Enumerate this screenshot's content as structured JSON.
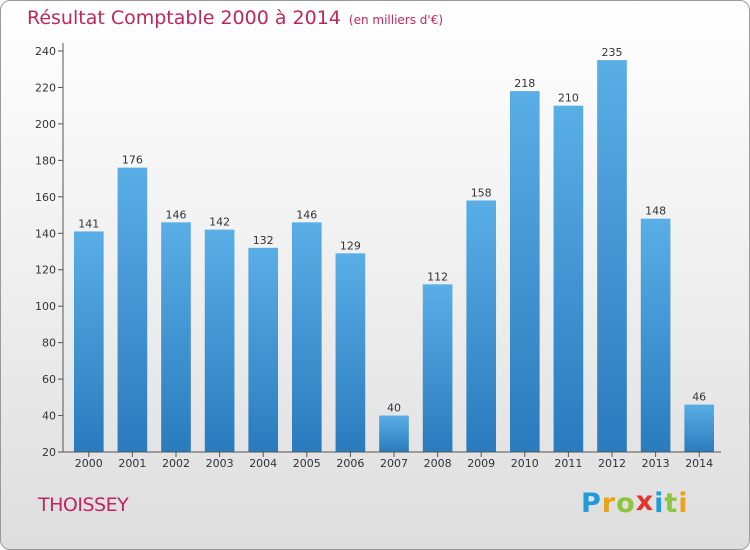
{
  "chart_data": {
    "type": "bar",
    "title": "Résultat Comptable 2000 à 2014",
    "subtitle": "(en milliers d'€)",
    "categories": [
      "2000",
      "2001",
      "2002",
      "2003",
      "2004",
      "2005",
      "2006",
      "2007",
      "2008",
      "2009",
      "2010",
      "2011",
      "2012",
      "2013",
      "2014"
    ],
    "values": [
      141,
      176,
      146,
      142,
      132,
      146,
      129,
      40,
      112,
      158,
      218,
      210,
      235,
      148,
      46
    ],
    "ylim": [
      20,
      240
    ],
    "yticks": [
      20,
      40,
      60,
      80,
      100,
      120,
      140,
      160,
      180,
      200,
      220,
      240
    ],
    "xlabel": "",
    "ylabel": "",
    "grid": false,
    "bar_color_top": "#5aaee6",
    "bar_color_bottom": "#2a7bbd",
    "axis_color": "#555555"
  },
  "place": "THOISSEY",
  "logo": {
    "letters": [
      "P",
      "r",
      "o",
      "x",
      "i",
      "t",
      "i"
    ],
    "colors": [
      "#1f9bd7",
      "#e8a21c",
      "#8cc63e",
      "#e5352b",
      "#1f9bd7",
      "#8cc63e",
      "#e8a21c"
    ]
  }
}
